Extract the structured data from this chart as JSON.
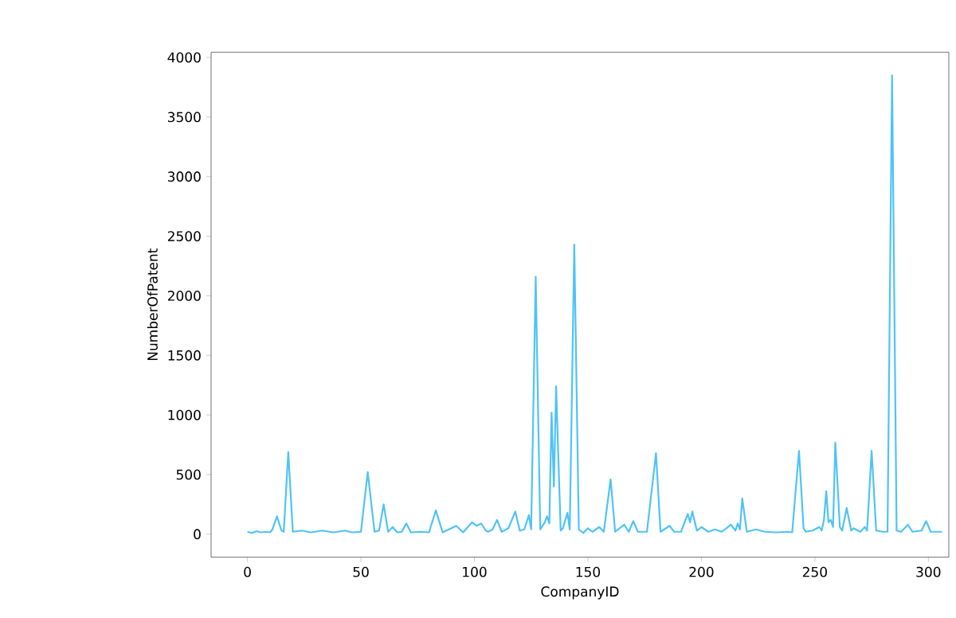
{
  "chart_data": {
    "type": "line",
    "xlabel": "CompanyID",
    "ylabel": "NumberOfPatent",
    "xlim": [
      -16,
      309
    ],
    "ylim": [
      -193,
      4043
    ],
    "xticks": [
      0,
      50,
      100,
      150,
      200,
      250,
      300
    ],
    "yticks": [
      0,
      500,
      1000,
      1500,
      2000,
      2500,
      3000,
      3500,
      4000
    ],
    "series": [
      {
        "color": "#4fc3f7",
        "x": [
          0,
          2,
          4,
          6,
          8,
          10,
          11,
          13,
          15,
          16,
          18,
          20,
          24,
          28,
          33,
          38,
          43,
          46,
          50,
          53,
          56,
          58,
          60,
          62,
          64,
          66,
          68,
          70,
          72,
          76,
          80,
          83,
          86,
          92,
          95,
          99,
          101,
          103,
          105,
          106,
          108,
          110,
          112,
          115,
          118,
          120,
          122,
          124,
          125,
          127,
          129,
          131,
          132,
          133,
          134,
          135,
          136,
          138,
          139,
          141,
          142,
          144,
          146,
          148,
          150,
          152,
          155,
          157,
          160,
          162,
          166,
          168,
          170,
          172,
          176,
          180,
          182,
          186,
          188,
          191,
          194,
          195,
          196,
          198,
          200,
          203,
          206,
          209,
          213,
          215,
          216,
          217,
          218,
          220,
          224,
          228,
          233,
          238,
          240,
          243,
          245,
          246,
          249,
          252,
          253,
          254,
          255,
          256,
          257,
          258,
          259,
          261,
          262,
          264,
          266,
          267,
          270,
          272,
          273,
          275,
          277,
          280,
          282,
          284,
          286,
          288,
          291,
          293,
          297,
          299,
          301,
          306
        ],
        "values": [
          20,
          10,
          25,
          15,
          20,
          15,
          40,
          150,
          30,
          20,
          690,
          20,
          30,
          15,
          30,
          15,
          30,
          15,
          20,
          520,
          20,
          30,
          250,
          20,
          60,
          15,
          20,
          90,
          15,
          20,
          15,
          200,
          15,
          70,
          15,
          100,
          70,
          90,
          30,
          20,
          40,
          120,
          20,
          50,
          190,
          30,
          40,
          160,
          40,
          2160,
          40,
          100,
          150,
          90,
          1020,
          400,
          1240,
          30,
          50,
          180,
          40,
          2430,
          40,
          10,
          50,
          20,
          60,
          20,
          460,
          20,
          80,
          20,
          110,
          20,
          20,
          680,
          20,
          70,
          20,
          20,
          170,
          100,
          190,
          30,
          60,
          20,
          40,
          20,
          80,
          30,
          90,
          40,
          300,
          20,
          40,
          20,
          15,
          20,
          15,
          700,
          50,
          20,
          30,
          60,
          30,
          120,
          360,
          100,
          120,
          60,
          770,
          60,
          30,
          220,
          30,
          50,
          20,
          60,
          30,
          700,
          30,
          20,
          20,
          3850,
          30,
          20,
          80,
          20,
          30,
          110,
          20,
          20
        ]
      }
    ]
  }
}
